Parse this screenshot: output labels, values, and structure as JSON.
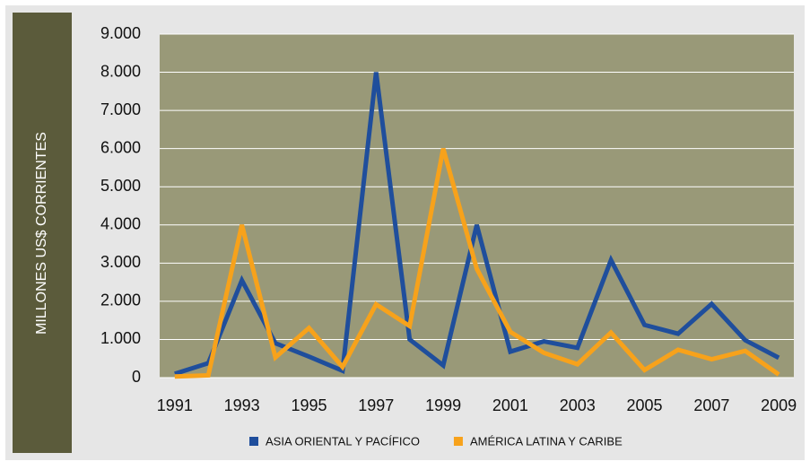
{
  "chart_data": {
    "type": "line",
    "ylabel": "MILLONES US$ CORRIENTES",
    "x": [
      1991,
      1992,
      1993,
      1994,
      1995,
      1996,
      1997,
      1998,
      1999,
      2000,
      2001,
      2002,
      2003,
      2004,
      2005,
      2006,
      2007,
      2008,
      2009
    ],
    "xlim": [
      1990.55,
      2009.45
    ],
    "xticks": [
      1991,
      1993,
      1995,
      1997,
      1999,
      2001,
      2003,
      2005,
      2007,
      2009
    ],
    "ylim": [
      0,
      9000
    ],
    "yticks": [
      0,
      {
        "value": 1000,
        "label": "1.000"
      },
      {
        "value": 2000,
        "label": "2.000"
      },
      {
        "value": 3000,
        "label": "3.000"
      },
      {
        "value": 4000,
        "label": "4.000"
      },
      {
        "value": 5000,
        "label": "5.000"
      },
      {
        "value": 6000,
        "label": "6.000"
      },
      {
        "value": 7000,
        "label": "7.000"
      },
      {
        "value": 8000,
        "label": "8.000"
      },
      {
        "value": 9000,
        "label": "9.000"
      }
    ],
    "grid": true,
    "legend": "bottom",
    "series": [
      {
        "name": "ASIA ORIENTAL Y PACÍFICO",
        "color": "#1f4e9c",
        "values": [
          100,
          380,
          2550,
          900,
          550,
          180,
          8000,
          1000,
          320,
          4000,
          680,
          950,
          780,
          3080,
          1380,
          1150,
          1930,
          980,
          520
        ]
      },
      {
        "name": "AMÉRICA LATINA Y CARIBE",
        "color": "#f7a21b",
        "values": [
          30,
          60,
          4000,
          530,
          1300,
          280,
          1920,
          1350,
          6000,
          2850,
          1200,
          650,
          350,
          1180,
          200,
          730,
          480,
          700,
          80
        ]
      }
    ]
  }
}
